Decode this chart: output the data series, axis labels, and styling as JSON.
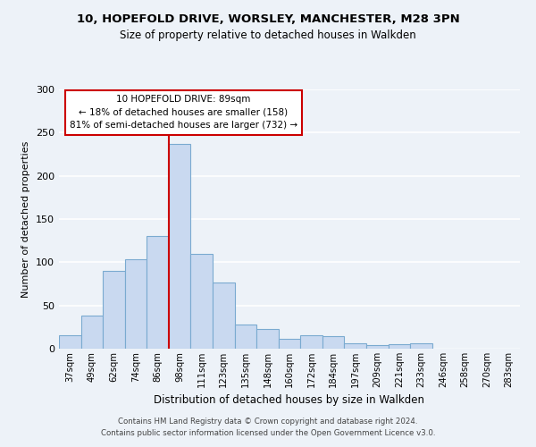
{
  "title": "10, HOPEFOLD DRIVE, WORSLEY, MANCHESTER, M28 3PN",
  "subtitle": "Size of property relative to detached houses in Walkden",
  "xlabel": "Distribution of detached houses by size in Walkden",
  "ylabel": "Number of detached properties",
  "bin_labels": [
    "37sqm",
    "49sqm",
    "62sqm",
    "74sqm",
    "86sqm",
    "98sqm",
    "111sqm",
    "123sqm",
    "135sqm",
    "148sqm",
    "160sqm",
    "172sqm",
    "184sqm",
    "197sqm",
    "209sqm",
    "221sqm",
    "233sqm",
    "246sqm",
    "258sqm",
    "270sqm",
    "283sqm"
  ],
  "bar_heights": [
    16,
    38,
    90,
    103,
    130,
    237,
    110,
    77,
    28,
    23,
    11,
    16,
    14,
    6,
    4,
    5,
    6,
    0,
    0,
    0,
    0
  ],
  "bar_color": "#c9d9f0",
  "bar_edge_color": "#7aaad0",
  "vline_bar_index": 4,
  "vline_color": "#cc0000",
  "annotation_text": "10 HOPEFOLD DRIVE: 89sqm\n← 18% of detached houses are smaller (158)\n81% of semi-detached houses are larger (732) →",
  "annotation_box_color": "#ffffff",
  "annotation_box_edge": "#cc0000",
  "ylim": [
    0,
    300
  ],
  "yticks": [
    0,
    50,
    100,
    150,
    200,
    250,
    300
  ],
  "bg_color": "#edf2f8",
  "grid_color": "#ffffff",
  "footer1": "Contains HM Land Registry data © Crown copyright and database right 2024.",
  "footer2": "Contains public sector information licensed under the Open Government Licence v3.0."
}
